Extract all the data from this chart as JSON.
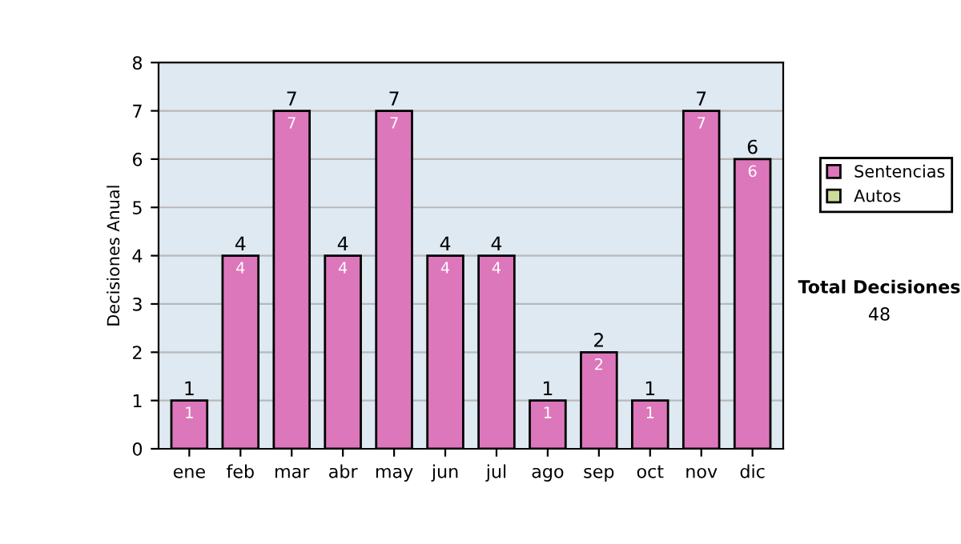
{
  "chart_data": {
    "type": "bar",
    "stacked": true,
    "ylabel": "Decisiones Anual",
    "categories": [
      "ene",
      "feb",
      "mar",
      "abr",
      "may",
      "jun",
      "jul",
      "ago",
      "sep",
      "oct",
      "nov",
      "dic"
    ],
    "series": [
      {
        "name": "Sentencias",
        "color": "#dd77bb",
        "values": [
          1,
          4,
          7,
          4,
          7,
          4,
          4,
          1,
          2,
          1,
          7,
          6
        ],
        "value_labels": [
          "1",
          "4",
          "7",
          "4",
          "7",
          "4",
          "4",
          "1",
          "2",
          "1",
          "7",
          "6"
        ]
      },
      {
        "name": "Autos",
        "color": "#ccdd99",
        "values": [
          0,
          0,
          0,
          0,
          0,
          0,
          0,
          0,
          0,
          0,
          0,
          0
        ]
      }
    ],
    "totals": [
      "1",
      "4",
      "7",
      "4",
      "7",
      "4",
      "4",
      "1",
      "2",
      "1",
      "7",
      "6"
    ],
    "ylim": [
      0,
      8
    ],
    "yticks": [
      0,
      1,
      2,
      3,
      4,
      5,
      6,
      7,
      8
    ],
    "grid": "y",
    "legend": "right",
    "annotations": [
      "Total Decisiones",
      "48"
    ]
  }
}
